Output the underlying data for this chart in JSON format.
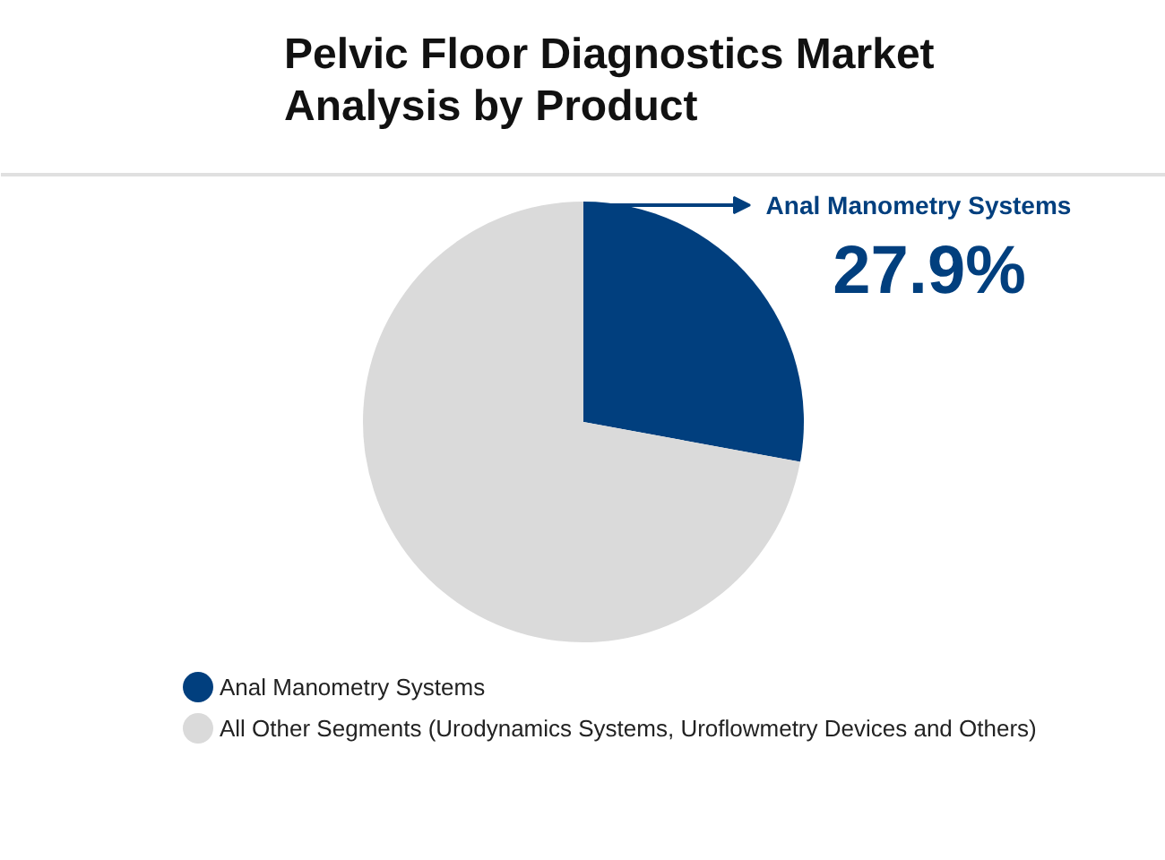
{
  "chart_data": {
    "type": "pie",
    "title": "Pelvic Floor Diagnostics Market Analysis by Product",
    "categories": [
      "Anal Manometry Systems",
      "All Other Segments (Urodynamics Systems, Uroflowmetry Devices and Others)"
    ],
    "values": [
      27.9,
      72.1
    ],
    "colors": [
      "#013f7e",
      "#dadada"
    ],
    "value_labels": [
      "27.9%",
      null
    ],
    "legend": "bottom"
  }
}
